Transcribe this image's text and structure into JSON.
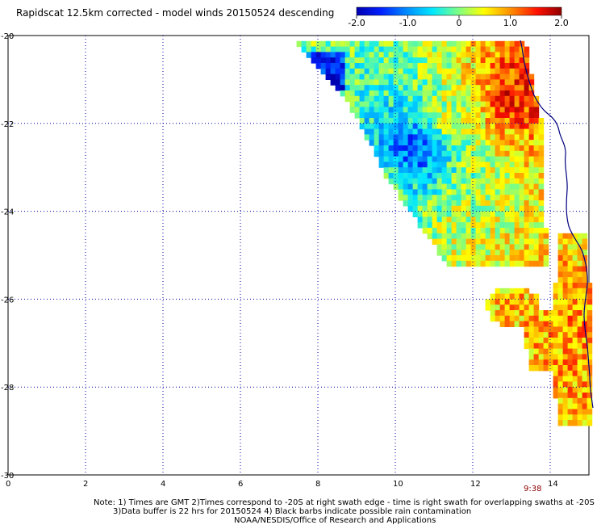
{
  "chart_data": {
    "type": "heatmap",
    "title": "Rapidscat 12.5km corrected - model winds 20150524 descending",
    "x_ticks": [
      "0",
      "2",
      "4",
      "6",
      "8",
      "10",
      "12",
      "14"
    ],
    "y_ticks": [
      "-20",
      "-22",
      "-24",
      "-26",
      "-28",
      "-30"
    ],
    "xlim": [
      0,
      15
    ],
    "ylim": [
      -30,
      -20
    ],
    "grid": true,
    "colorbar": {
      "min": -2.0,
      "max": 2.0,
      "ticks": [
        "-2.0",
        "-1.0",
        "0",
        "1.0",
        "2.0"
      ],
      "colormap": "rainbow",
      "placement": "top-right"
    },
    "swath_time_label": "9:38",
    "notes": [
      "Note: 1) Times are GMT 2)Times correspond to -20S at right swath edge - time is right swath for overlapping swaths at -20S",
      "3)Data buffer is 22 hrs for 20150524 4) Black barbs indicate possible rain contamination",
      "NOAA/NESDIS/Office of Research and Applications"
    ],
    "regions": [
      {
        "name": "main swath core",
        "x": 11.2,
        "y": -21.8,
        "value": 0.4
      },
      {
        "name": "strong positive near coast",
        "x": 13.0,
        "y": -21.3,
        "value": 1.6
      },
      {
        "name": "negative band",
        "x": 10.5,
        "y": -22.5,
        "value": -1.7
      },
      {
        "name": "swath western edge",
        "x": 9.6,
        "y": -23.4,
        "value": -0.2
      },
      {
        "name": "swath southern lobe",
        "x": 11.5,
        "y": -24.3,
        "value": 0.3
      },
      {
        "name": "detached blob",
        "x": 13.0,
        "y": -26.0,
        "value": 0.8
      },
      {
        "name": "coastal strip",
        "x": 14.5,
        "y": -26.5,
        "value": 1.0
      },
      {
        "name": "southern coastal strip",
        "x": 14.4,
        "y": -28.0,
        "value": 0.9
      }
    ]
  }
}
